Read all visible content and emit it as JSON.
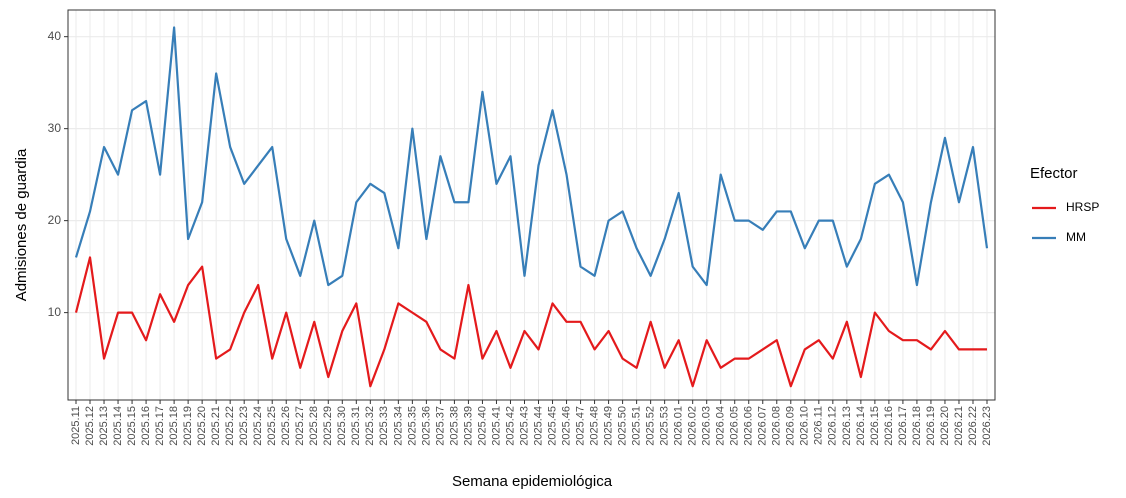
{
  "chart_data": {
    "type": "line",
    "x_label": "Semana epidemiológica",
    "y_label": "Admisiones de guardia",
    "legend_title": "Efector",
    "legend_position": "right",
    "grid": true,
    "categories": [
      "2025.11",
      "2025.12",
      "2025.13",
      "2025.14",
      "2025.15",
      "2025.16",
      "2025.17",
      "2025.18",
      "2025.19",
      "2025.20",
      "2025.21",
      "2025.22",
      "2025.23",
      "2025.24",
      "2025.25",
      "2025.26",
      "2025.27",
      "2025.28",
      "2025.29",
      "2025.30",
      "2025.31",
      "2025.32",
      "2025.33",
      "2025.34",
      "2025.35",
      "2025.36",
      "2025.37",
      "2025.38",
      "2025.39",
      "2025.40",
      "2025.41",
      "2025.42",
      "2025.43",
      "2025.44",
      "2025.45",
      "2025.46",
      "2025.47",
      "2025.48",
      "2025.49",
      "2025.50",
      "2025.51",
      "2025.52",
      "2025.53",
      "2026.01",
      "2026.02",
      "2026.03",
      "2026.04",
      "2026.05",
      "2026.06",
      "2026.07",
      "2026.08",
      "2026.09",
      "2026.10",
      "2026.11",
      "2026.12",
      "2026.13",
      "2026.14",
      "2026.15",
      "2026.16",
      "2026.17",
      "2026.18",
      "2026.19",
      "2026.20",
      "2026.21",
      "2026.22",
      "2026.23"
    ],
    "series": [
      {
        "name": "HRSP",
        "color": "#e41a1c",
        "values": [
          10,
          16,
          5,
          10,
          10,
          7,
          12,
          9,
          13,
          15,
          5,
          6,
          10,
          13,
          5,
          10,
          4,
          9,
          3,
          8,
          11,
          2,
          6,
          11,
          10,
          9,
          6,
          5,
          13,
          5,
          8,
          4,
          8,
          6,
          11,
          9,
          9,
          6,
          8,
          5,
          4,
          9,
          4,
          7,
          2,
          7,
          4,
          5,
          5,
          6,
          7,
          2,
          6,
          7,
          5,
          9,
          3,
          10,
          8,
          7,
          7,
          6,
          8,
          6,
          6,
          6
        ]
      },
      {
        "name": "MM",
        "color": "#377eb8",
        "values": [
          16,
          21,
          28,
          25,
          32,
          33,
          25,
          41,
          18,
          22,
          36,
          28,
          24,
          26,
          28,
          18,
          14,
          20,
          13,
          14,
          22,
          24,
          23,
          17,
          30,
          18,
          27,
          22,
          22,
          34,
          24,
          27,
          14,
          26,
          32,
          25,
          15,
          14,
          20,
          21,
          17,
          14,
          18,
          23,
          15,
          13,
          25,
          20,
          20,
          19,
          21,
          21,
          17,
          20,
          20,
          15,
          18,
          24,
          25,
          22,
          13,
          22,
          29,
          22,
          28,
          17
        ]
      }
    ],
    "ylim": [
      0.5,
      42.9
    ],
    "yticks": [
      10,
      20,
      30,
      40
    ]
  }
}
